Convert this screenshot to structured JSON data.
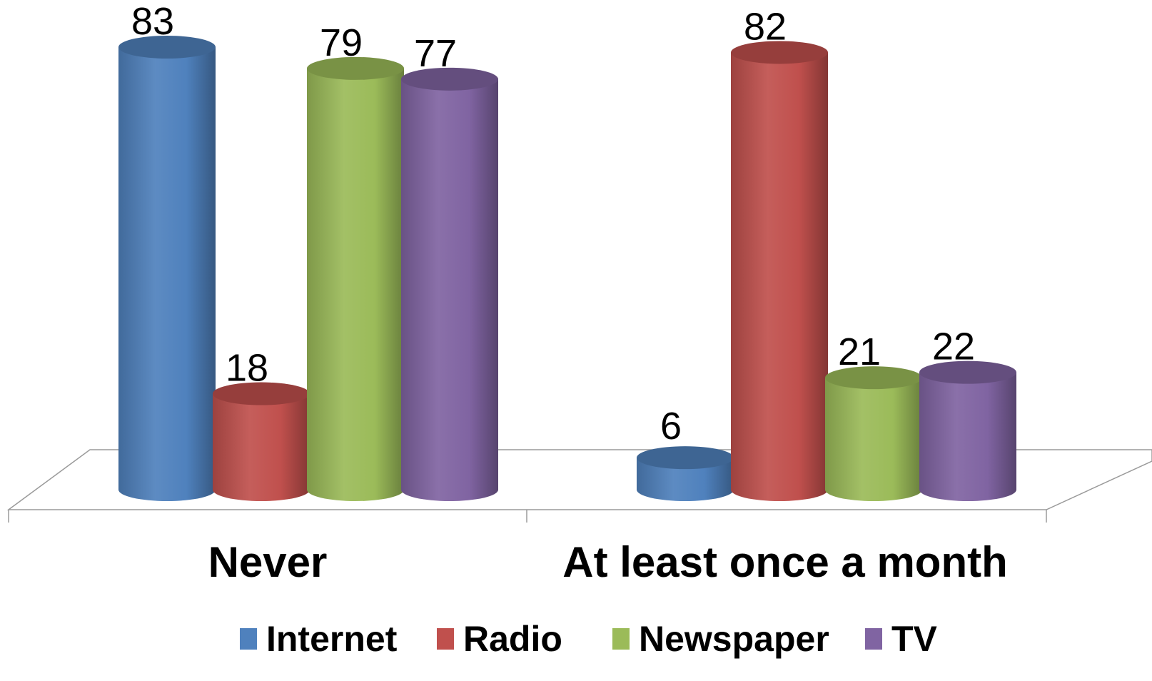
{
  "chart_data": {
    "type": "bar",
    "title": "",
    "xlabel": "",
    "ylabel": "",
    "ylim": [
      0,
      90
    ],
    "grid": false,
    "legend_position": "bottom",
    "categories": [
      "Never",
      "At least once a month"
    ],
    "series": [
      {
        "name": "Internet",
        "values": [
          83,
          6
        ],
        "color": "#4f81bd"
      },
      {
        "name": "Radio",
        "values": [
          18,
          82
        ],
        "color": "#c0504d"
      },
      {
        "name": "Newspaper",
        "values": [
          79,
          21
        ],
        "color": "#9bbb59"
      },
      {
        "name": "TV",
        "values": [
          77,
          22
        ],
        "color": "#8064a2"
      }
    ],
    "data_labels": true
  }
}
